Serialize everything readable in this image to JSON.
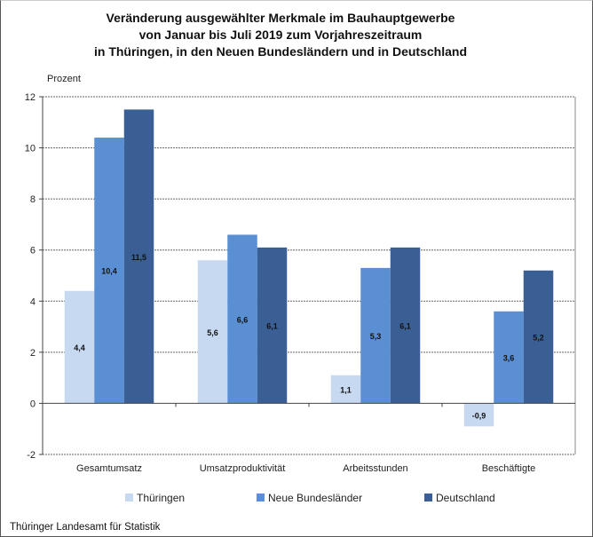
{
  "chart_data": {
    "type": "bar",
    "title": [
      "Veränderung ausgewählter Merkmale im Bauhauptgewerbe",
      "von Januar bis Juli 2019 zum Vorjahreszeitraum",
      "in Thüringen, in den Neuen Bundesländern und in Deutschland"
    ],
    "ylabel": "Prozent",
    "xlabel": "",
    "ylim": [
      -2,
      12
    ],
    "yticks": [
      -2,
      0,
      2,
      4,
      6,
      8,
      10,
      12
    ],
    "grid": true,
    "legend": "bottom",
    "categories": [
      "Gesamtumsatz",
      "Umsatzproduktivität",
      "Arbeitsstunden",
      "Beschäftigte"
    ],
    "series": [
      {
        "name": "Thüringen",
        "color": "#c6d9f1",
        "values": [
          4.4,
          5.6,
          1.1,
          -0.9
        ]
      },
      {
        "name": "Neue Bundesländer",
        "color": "#5b8fd4",
        "values": [
          10.4,
          6.6,
          5.3,
          3.6
        ]
      },
      {
        "name": "Deutschland",
        "color": "#3a5f95",
        "values": [
          11.5,
          6.1,
          6.1,
          5.2
        ]
      }
    ],
    "data_labels": true
  },
  "source": "Thüringer Landesamt für Statistik"
}
